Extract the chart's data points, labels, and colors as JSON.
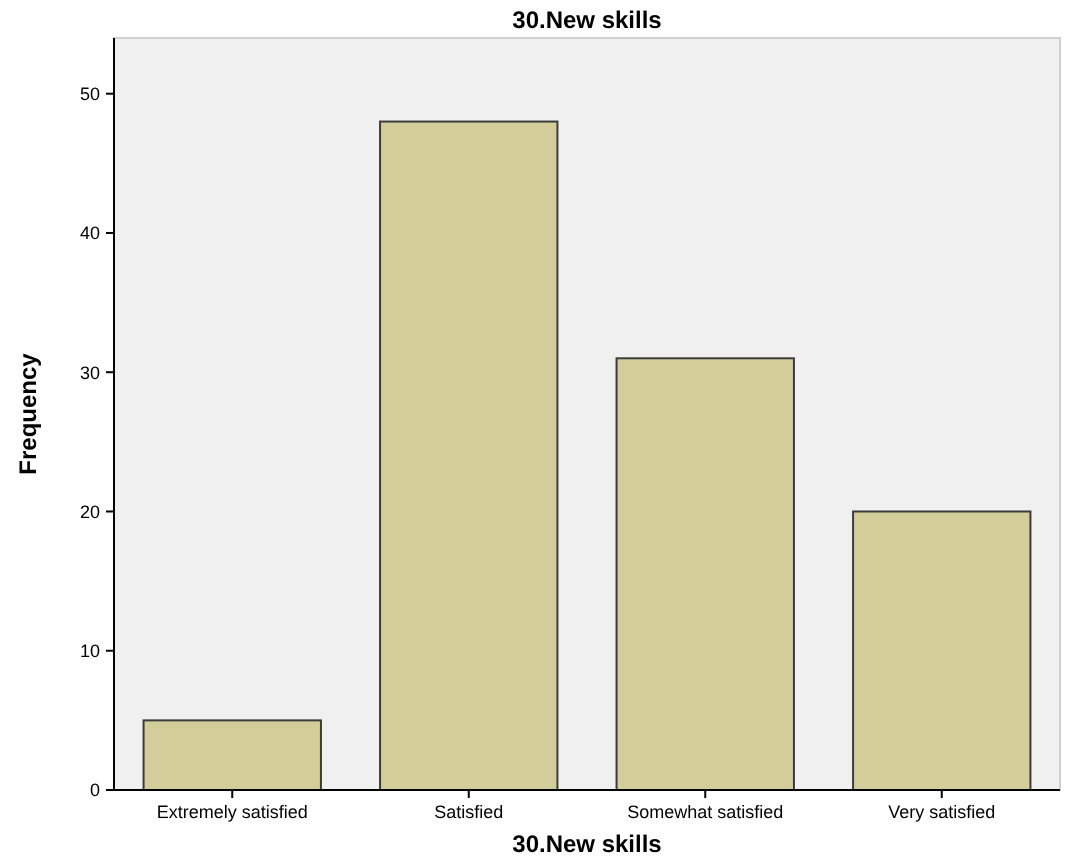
{
  "chart_data": {
    "type": "bar",
    "title": "30.New skills",
    "xlabel": "30.New skills",
    "ylabel": "Frequency",
    "categories": [
      "Extremely satisfied",
      "Satisfied",
      "Somewhat satisfied",
      "Very satisfied"
    ],
    "values": [
      5,
      48,
      31,
      20
    ],
    "color": "#d3ce99",
    "ylim": [
      0,
      54
    ],
    "yticks": [
      0,
      10,
      20,
      30,
      40,
      50
    ],
    "grid": false
  }
}
